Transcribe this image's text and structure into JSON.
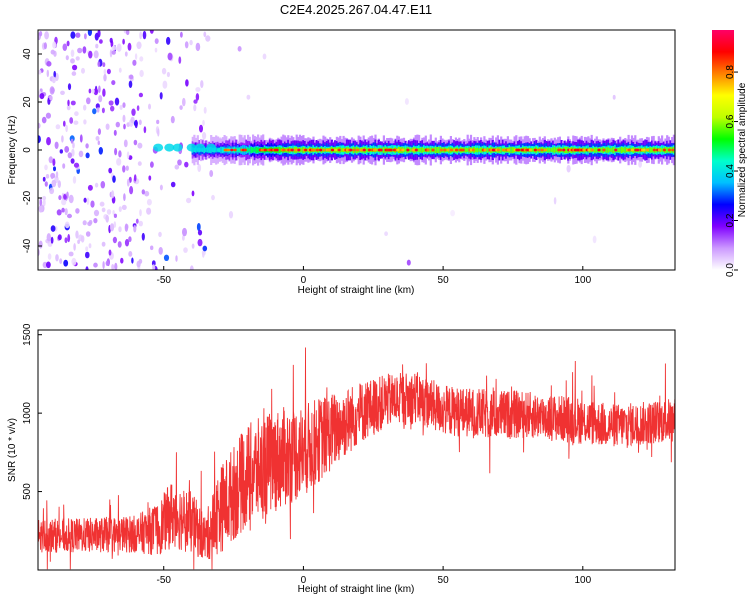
{
  "title": "C2E4.2025.267.04.47.E11",
  "chart_data": [
    {
      "type": "heatmap",
      "name": "spectrogram",
      "xlabel": "Height of straight line (km)",
      "ylabel": "Frequency (Hz)",
      "xlim": [
        -95,
        133
      ],
      "ylim": [
        -50,
        50
      ],
      "xticks": [
        -50,
        0,
        50,
        100
      ],
      "yticks": [
        -40,
        -20,
        0,
        20,
        40
      ],
      "colorbar": {
        "label": "Normalized spectral amplitude",
        "range": [
          0,
          0.97
        ],
        "ticks": [
          "0.0",
          "0.2",
          "0.4",
          "0.6",
          "0.8"
        ],
        "tick_values": [
          0,
          0.2,
          0.4,
          0.6,
          0.8
        ],
        "colors": [
          "#ffffff",
          "#cc99ff",
          "#8000ff",
          "#0000ff",
          "#00bfff",
          "#00ffcc",
          "#00ff00",
          "#bfff00",
          "#ffff00",
          "#ff8000",
          "#ff0000",
          "#ff0066"
        ]
      },
      "noise_region": {
        "x": [
          -95,
          -35
        ],
        "freq": [
          -50,
          50
        ],
        "amplitude": 0.2
      },
      "signal_line": {
        "freq": 0,
        "x_start": -40,
        "x_end": 133,
        "peak_amplitude": 0.95
      }
    },
    {
      "type": "line",
      "name": "snr",
      "xlabel": "Height of straight line (km)",
      "ylabel": "SNR (10 * v/v)",
      "xlim": [
        -95,
        133
      ],
      "ylim": [
        0,
        1530
      ],
      "xticks": [
        -50,
        0,
        50,
        100
      ],
      "yticks": [
        500,
        1000,
        1500
      ],
      "color": "#f03232",
      "envelope": {
        "x": [
          -95,
          -80,
          -60,
          -52,
          -47,
          -40,
          -35,
          -30,
          -20,
          -10,
          0,
          10,
          20,
          30,
          40,
          50,
          60,
          70,
          80,
          90,
          100,
          110,
          120,
          133
        ],
        "mean": [
          220,
          220,
          230,
          260,
          360,
          300,
          200,
          380,
          600,
          700,
          760,
          880,
          1000,
          1080,
          1100,
          1020,
          1000,
          990,
          990,
          970,
          950,
          920,
          930,
          960
        ],
        "amp": [
          110,
          110,
          120,
          170,
          220,
          200,
          150,
          280,
          330,
          330,
          300,
          250,
          200,
          170,
          170,
          160,
          160,
          160,
          150,
          150,
          150,
          140,
          140,
          140
        ]
      }
    }
  ]
}
